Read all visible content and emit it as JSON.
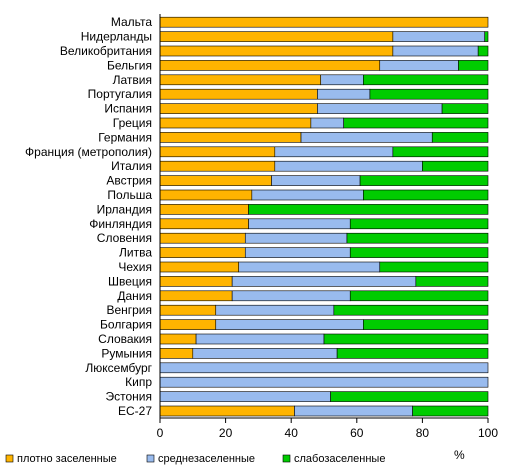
{
  "chart_data": {
    "type": "bar",
    "orientation": "horizontal",
    "stacked": true,
    "xunit": "%",
    "xlim": [
      0,
      100
    ],
    "xticks": [
      "0",
      "20",
      "40",
      "60",
      "80",
      "100"
    ],
    "grid": false,
    "legend_position": "bottom",
    "categories": [
      "Мальта",
      "Нидерланды",
      "Великобритания",
      "Бельгия",
      "Латвия",
      "Португалия",
      "Испания",
      "Греция",
      "Германия",
      "Франция (метрополия)",
      "Италия",
      "Австрия",
      "Польша",
      "Ирландия",
      "Финляндия",
      "Словения",
      "Литва",
      "Чехия",
      "Швеция",
      "Дания",
      "Венгрия",
      "Болгария",
      "Словакия",
      "Румыния",
      "Люксембург",
      "Кипр",
      "Эстония",
      "ЕС-27"
    ],
    "series": [
      {
        "name": "плотно заселенные",
        "color": "#FFB400",
        "values": [
          100,
          71,
          71,
          67,
          49,
          48,
          48,
          46,
          43,
          35,
          35,
          34,
          28,
          27,
          27,
          26,
          26,
          24,
          22,
          22,
          17,
          17,
          11,
          10,
          0,
          0,
          0,
          41
        ]
      },
      {
        "name": "среднезаселенные",
        "color": "#99BBEE",
        "values": [
          0,
          28,
          26,
          24,
          13,
          16,
          38,
          10,
          40,
          36,
          45,
          27,
          34,
          0,
          31,
          31,
          32,
          43,
          56,
          36,
          36,
          45,
          39,
          44,
          100,
          100,
          52,
          36
        ]
      },
      {
        "name": "слабозаселенные",
        "color": "#00CC00",
        "values": [
          0,
          1,
          3,
          9,
          38,
          36,
          14,
          44,
          17,
          29,
          20,
          39,
          38,
          73,
          42,
          43,
          42,
          33,
          22,
          42,
          47,
          38,
          50,
          46,
          0,
          0,
          48,
          23
        ]
      }
    ]
  }
}
